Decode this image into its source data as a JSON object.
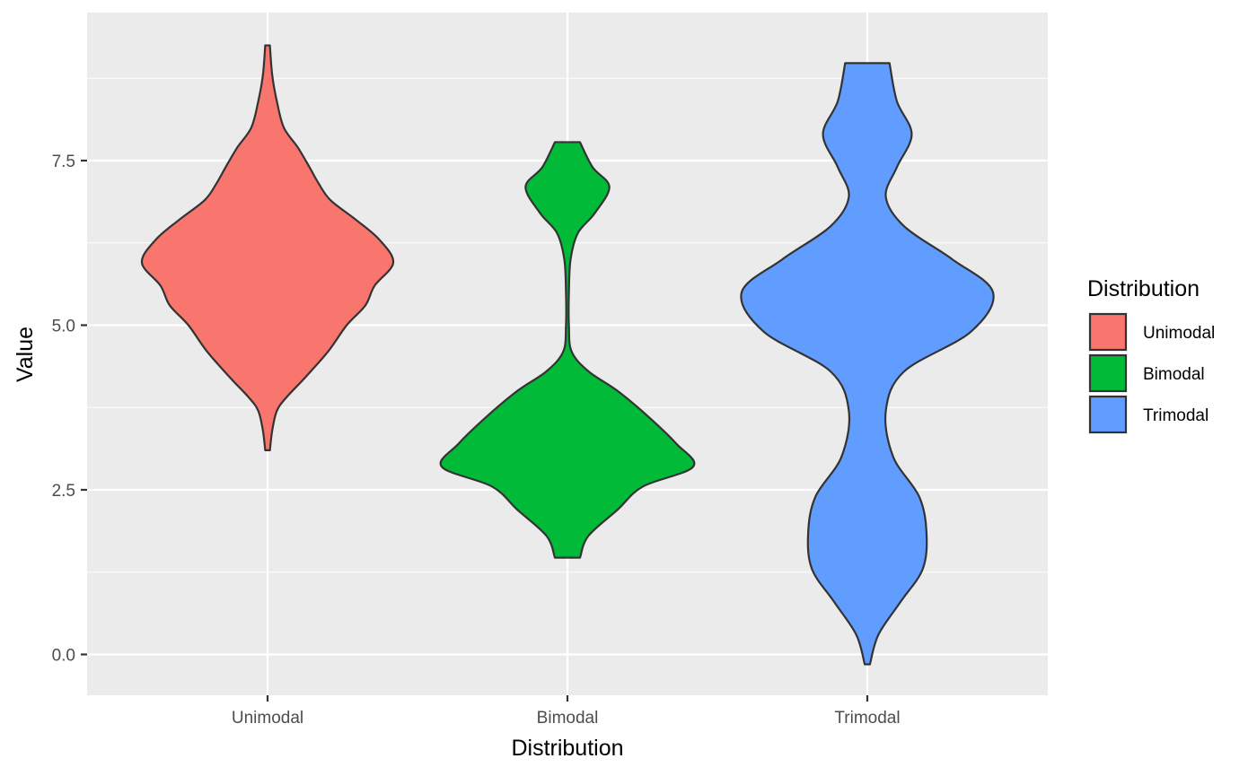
{
  "chart_data": {
    "type": "violin",
    "xlabel": "Distribution",
    "ylabel": "Value",
    "categories": [
      "Unimodal",
      "Bimodal",
      "Trimodal"
    ],
    "ylim": [
      -0.6,
      9.8
    ],
    "yticks": [
      "0.0",
      "2.5",
      "5.0",
      "7.5"
    ],
    "ytick_values": [
      0,
      2.5,
      5.0,
      7.5
    ],
    "grid": true,
    "legend": {
      "title": "Distribution",
      "placement": "right",
      "items": [
        "Unimodal",
        "Bimodal",
        "Trimodal"
      ]
    },
    "series": [
      {
        "category": "Unimodal",
        "color": "#F8766D",
        "min": 3.1,
        "max": 9.25,
        "density_profile": [
          [
            3.1,
            0.01
          ],
          [
            3.4,
            0.02
          ],
          [
            3.7,
            0.04
          ],
          [
            3.9,
            0.08
          ],
          [
            4.2,
            0.16
          ],
          [
            4.6,
            0.26
          ],
          [
            5.0,
            0.34
          ],
          [
            5.3,
            0.42
          ],
          [
            5.6,
            0.46
          ],
          [
            5.95,
            0.54
          ],
          [
            6.3,
            0.48
          ],
          [
            6.6,
            0.38
          ],
          [
            6.9,
            0.27
          ],
          [
            7.15,
            0.22
          ],
          [
            7.4,
            0.18
          ],
          [
            7.7,
            0.13
          ],
          [
            8.0,
            0.07
          ],
          [
            8.4,
            0.04
          ],
          [
            8.8,
            0.02
          ],
          [
            9.25,
            0.01
          ]
        ]
      },
      {
        "category": "Bimodal",
        "color": "#00BA38",
        "min": 1.47,
        "max": 7.78,
        "density_profile": [
          [
            1.47,
            0.06
          ],
          [
            1.8,
            0.1
          ],
          [
            2.2,
            0.24
          ],
          [
            2.55,
            0.36
          ],
          [
            2.85,
            0.6
          ],
          [
            3.2,
            0.52
          ],
          [
            3.6,
            0.39
          ],
          [
            4.0,
            0.24
          ],
          [
            4.3,
            0.1
          ],
          [
            4.6,
            0.02
          ],
          [
            5.0,
            0.007
          ],
          [
            5.5,
            0.007
          ],
          [
            6.0,
            0.015
          ],
          [
            6.4,
            0.05
          ],
          [
            6.7,
            0.13
          ],
          [
            7.1,
            0.2
          ],
          [
            7.4,
            0.12
          ],
          [
            7.78,
            0.06
          ]
        ]
      },
      {
        "category": "Trimodal",
        "color": "#619CFF",
        "min": -0.15,
        "max": 8.98,
        "density_profile": [
          [
            -0.15,
            0.007
          ],
          [
            0.3,
            0.03
          ],
          [
            0.8,
            0.09
          ],
          [
            1.3,
            0.15
          ],
          [
            1.85,
            0.16
          ],
          [
            2.4,
            0.14
          ],
          [
            3.0,
            0.07
          ],
          [
            3.7,
            0.05
          ],
          [
            4.3,
            0.1
          ],
          [
            4.9,
            0.28
          ],
          [
            5.5,
            0.34
          ],
          [
            6.0,
            0.23
          ],
          [
            6.5,
            0.1
          ],
          [
            6.95,
            0.05
          ],
          [
            7.4,
            0.08
          ],
          [
            7.9,
            0.12
          ],
          [
            8.4,
            0.08
          ],
          [
            8.98,
            0.06
          ]
        ]
      }
    ]
  }
}
